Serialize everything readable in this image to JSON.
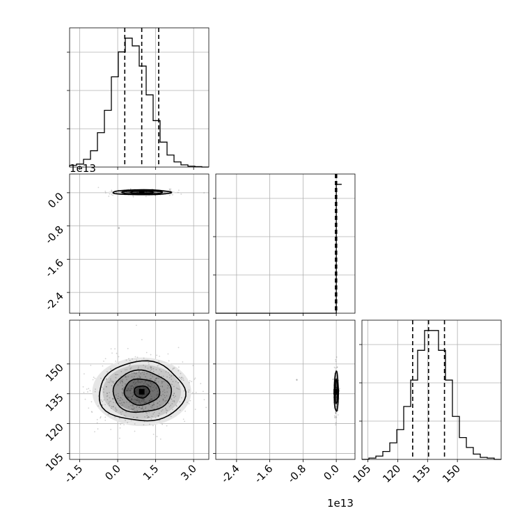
{
  "chart_data": {
    "type": "corner",
    "parameters": [
      {
        "index": 0,
        "range": [
          -1.9,
          3.6
        ],
        "ticks": [
          "-1.5",
          "0.0",
          "1.5",
          "3.0"
        ],
        "tick_values": [
          -1.5,
          0.0,
          1.5,
          3.0
        ],
        "quantiles": [
          0.28,
          0.95,
          1.62
        ],
        "hist_edges": [
          -1.9,
          -1.625,
          -1.35,
          -1.075,
          -0.8,
          -0.525,
          -0.25,
          0.025,
          0.3,
          0.575,
          0.85,
          1.125,
          1.4,
          1.675,
          1.95,
          2.225,
          2.5,
          2.775,
          3.05,
          3.325,
          3.6
        ],
        "hist_counts": [
          0.04,
          0.07,
          0.18,
          0.38,
          0.8,
          1.32,
          2.1,
          2.68,
          3.0,
          2.82,
          2.35,
          1.68,
          1.08,
          0.58,
          0.28,
          0.12,
          0.05,
          0.02,
          0.01,
          0.0
        ]
      },
      {
        "index": 1,
        "offset_label": "1e13",
        "range": [
          -2.9,
          0.45
        ],
        "ticks": [
          "-2.4",
          "-1.6",
          "-0.8",
          "0.0"
        ],
        "tick_values": [
          -2.4,
          -1.6,
          -0.8,
          0.0
        ],
        "quantiles": [
          -0.02,
          0.0,
          0.01
        ],
        "hist_edges": [
          -2.9,
          0.0,
          0.13
        ],
        "hist_counts": [
          0.0,
          1.0
        ]
      },
      {
        "index": 2,
        "range": [
          102,
          172
        ],
        "ticks": [
          "105",
          "120",
          "135",
          "150"
        ],
        "tick_values": [
          105,
          120,
          135,
          150
        ],
        "quantiles": [
          127.5,
          135.5,
          143.5
        ],
        "hist_edges": [
          102,
          105.5,
          109,
          112.5,
          116,
          119.5,
          123,
          126.5,
          130,
          133.5,
          137,
          140.5,
          144,
          147.5,
          151,
          154.5,
          158,
          161.5,
          165,
          168.5,
          172
        ],
        "hist_counts": [
          0.0,
          0.02,
          0.05,
          0.12,
          0.25,
          0.45,
          0.8,
          1.2,
          1.65,
          1.95,
          1.95,
          1.65,
          1.2,
          0.65,
          0.33,
          0.18,
          0.08,
          0.03,
          0.02,
          0.0
        ]
      }
    ],
    "pairs": [
      {
        "x_param": 0,
        "y_param": 1,
        "center": [
          0.95,
          0.01
        ],
        "contour_half_widths": [
          [
            1.15,
            0.06
          ],
          [
            0.8,
            0.045
          ],
          [
            0.45,
            0.03
          ]
        ],
        "outlier": [
          0.05,
          -0.85
        ]
      },
      {
        "x_param": 0,
        "y_param": 2,
        "center": [
          0.95,
          136
        ],
        "contour_half_widths": [
          [
            1.7,
            15
          ],
          [
            1.15,
            10.5
          ],
          [
            0.7,
            6.5
          ],
          [
            0.3,
            3
          ]
        ]
      },
      {
        "x_param": 1,
        "y_param": 2,
        "center": [
          0.0,
          136
        ],
        "contour_half_widths": [
          [
            0.05,
            10
          ],
          [
            0.03,
            6
          ]
        ],
        "outlier": [
          -0.95,
          142
        ]
      }
    ],
    "bottom_offset_label": "1e13",
    "title": "",
    "xlabel": "",
    "ylabel": ""
  }
}
